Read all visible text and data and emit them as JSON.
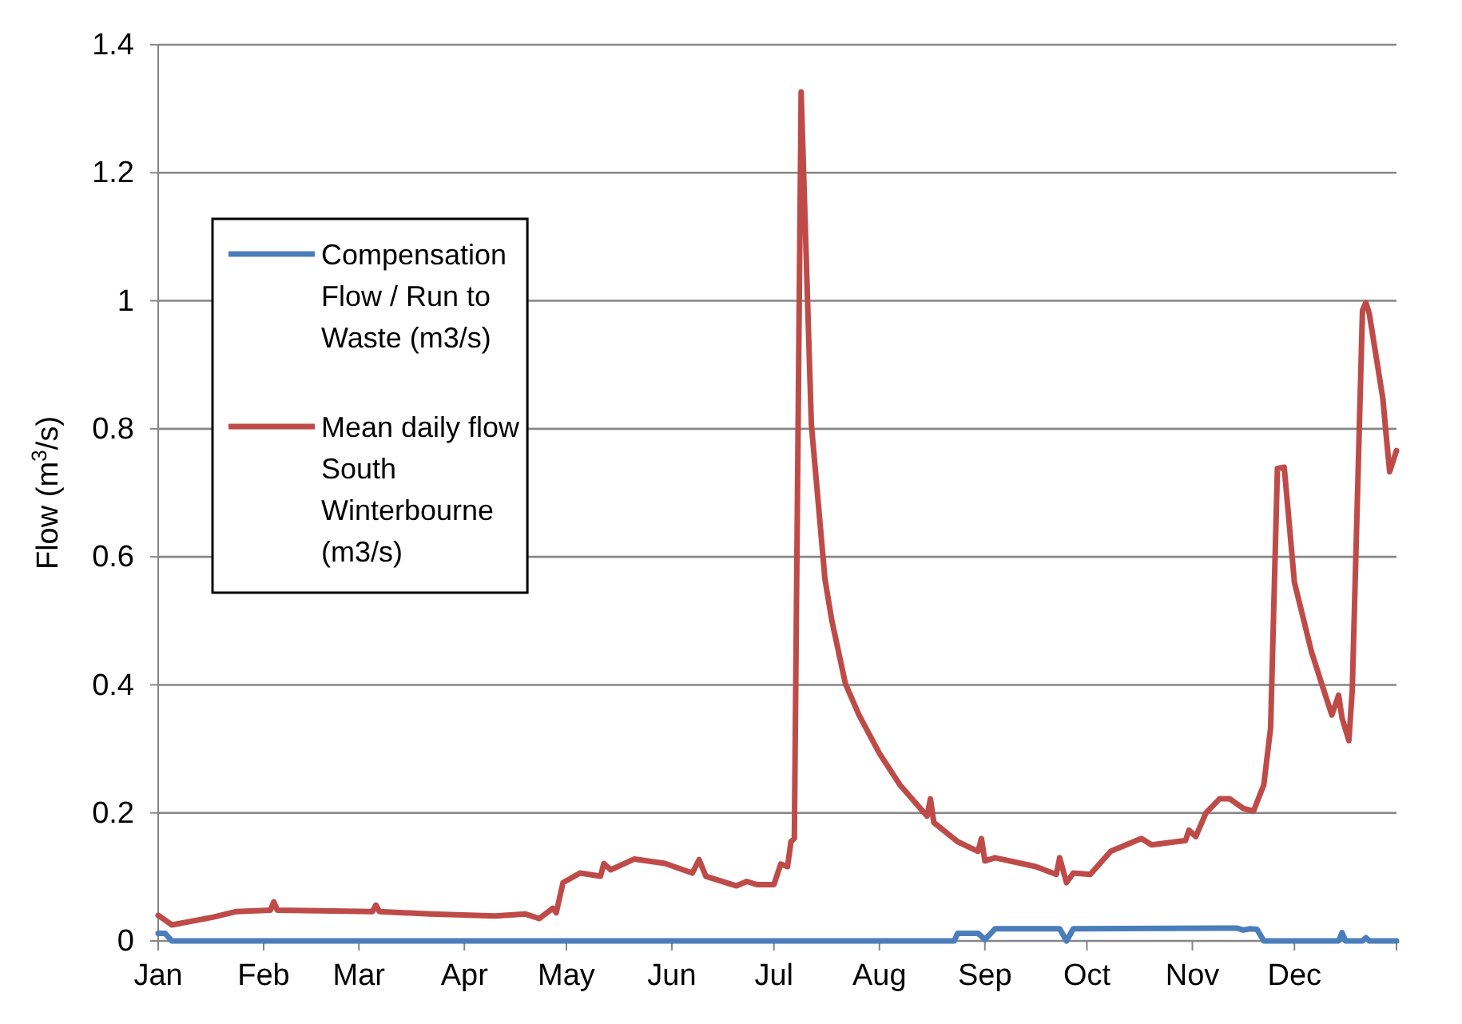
{
  "chart_data": {
    "type": "line",
    "ylabel": "Flow (m$^{3}$/s)",
    "grid": "y",
    "legend": "left",
    "marker": "none",
    "line_style": "solid",
    "xlim": [
      "--01-01",
      "--12-31"
    ],
    "xticks": [
      {
        "value": "--01-01",
        "label": "Jan"
      },
      {
        "value": "--02-01",
        "label": "Feb"
      },
      {
        "value": "--03-01",
        "label": "Mar"
      },
      {
        "value": "--04-01",
        "label": "Apr"
      },
      {
        "value": "--05-01",
        "label": "May"
      },
      {
        "value": "--06-01",
        "label": "Jun"
      },
      {
        "value": "--07-01",
        "label": "Jul"
      },
      {
        "value": "--08-01",
        "label": "Aug"
      },
      {
        "value": "--09-01",
        "label": "Sep"
      },
      {
        "value": "--10-01",
        "label": "Oct"
      },
      {
        "value": "--11-01",
        "label": "Nov"
      },
      {
        "value": "--12-01",
        "label": "Dec"
      },
      {
        "value": "--12-31",
        "label": null
      }
    ],
    "ylim": [
      0,
      1.4
    ],
    "yticks": [
      0,
      0.2,
      0.4,
      0.6,
      0.8,
      1,
      1.2,
      1.4
    ],
    "series": [
      {
        "name": "Compensation Flow / Run to Waste (m3/s)",
        "color": "#4a7ebb",
        "x": [
          "--01-01",
          "--01-03",
          "--01-05",
          "--08-23",
          "--08-24",
          "--08-30",
          "--09-01",
          "--09-04",
          "--09-23",
          "--09-25",
          "--09-27",
          "--11-14",
          "--11-16",
          "--11-18",
          "--11-20",
          "--11-22",
          "--12-14",
          "--12-15",
          "--12-16",
          "--12-21",
          "--12-22",
          "--12-23",
          "--12-31"
        ],
        "values": [
          0.012,
          0.012,
          0,
          0,
          0.012,
          0.012,
          0.002,
          0.019,
          0.019,
          0,
          0.019,
          0.02,
          0.017,
          0.019,
          0.018,
          0,
          0,
          0.013,
          0,
          0,
          0.005,
          0,
          0
        ]
      },
      {
        "name": "Mean daily flow South Winterbourne (m3/s)",
        "color": "#be4b48",
        "x": [
          "--01-01",
          "--01-05",
          "--01-17",
          "--01-24",
          "--02-03",
          "--02-04",
          "--02-05",
          "--03-05",
          "--03-06",
          "--03-07",
          "--03-22",
          "--04-10",
          "--04-19",
          "--04-23",
          "--04-27",
          "--04-28",
          "--04-30",
          "--05-05",
          "--05-11",
          "--05-12",
          "--05-14",
          "--05-21",
          "--05-30",
          "--06-07",
          "--06-09",
          "--06-11",
          "--06-20",
          "--06-23",
          "--06-26",
          "--07-01",
          "--07-03",
          "--07-05",
          "--07-06",
          "--07-07",
          "--07-09",
          "--07-12",
          "--07-16",
          "--07-18",
          "--07-22",
          "--07-26",
          "--08-01",
          "--08-07",
          "--08-15",
          "--08-16",
          "--08-17",
          "--08-24",
          "--08-30",
          "--08-31",
          "--09-01",
          "--09-04",
          "--09-16",
          "--09-22",
          "--09-23",
          "--09-25",
          "--09-27",
          "--10-02",
          "--10-08",
          "--10-17",
          "--10-20",
          "--10-30",
          "--10-31",
          "--11-02",
          "--11-05",
          "--11-09",
          "--11-12",
          "--11-16",
          "--11-19",
          "--11-22",
          "--11-24",
          "--11-26",
          "--11-28",
          "--12-01",
          "--12-06",
          "--12-09",
          "--12-12",
          "--12-14",
          "--12-15",
          "--12-17",
          "--12-18",
          "--12-21",
          "--12-22",
          "--12-23",
          "--12-27",
          "--12-28",
          "--12-29",
          "--12-31"
        ],
        "values": [
          0.04,
          0.025,
          0.037,
          0.046,
          0.048,
          0.061,
          0.048,
          0.046,
          0.056,
          0.046,
          0.042,
          0.039,
          0.042,
          0.035,
          0.051,
          0.044,
          0.091,
          0.106,
          0.101,
          0.121,
          0.111,
          0.128,
          0.121,
          0.106,
          0.127,
          0.101,
          0.086,
          0.093,
          0.088,
          0.088,
          0.12,
          0.116,
          0.155,
          0.16,
          1.326,
          0.807,
          0.565,
          0.501,
          0.402,
          0.353,
          0.293,
          0.244,
          0.195,
          0.222,
          0.185,
          0.155,
          0.14,
          0.16,
          0.125,
          0.13,
          0.116,
          0.104,
          0.13,
          0.091,
          0.106,
          0.104,
          0.14,
          0.16,
          0.15,
          0.157,
          0.173,
          0.163,
          0.2,
          0.222,
          0.222,
          0.207,
          0.203,
          0.244,
          0.333,
          0.738,
          0.74,
          0.56,
          0.452,
          0.402,
          0.353,
          0.384,
          0.348,
          0.313,
          0.392,
          0.985,
          0.997,
          0.98,
          0.847,
          0.788,
          0.733,
          0.766
        ]
      }
    ]
  }
}
